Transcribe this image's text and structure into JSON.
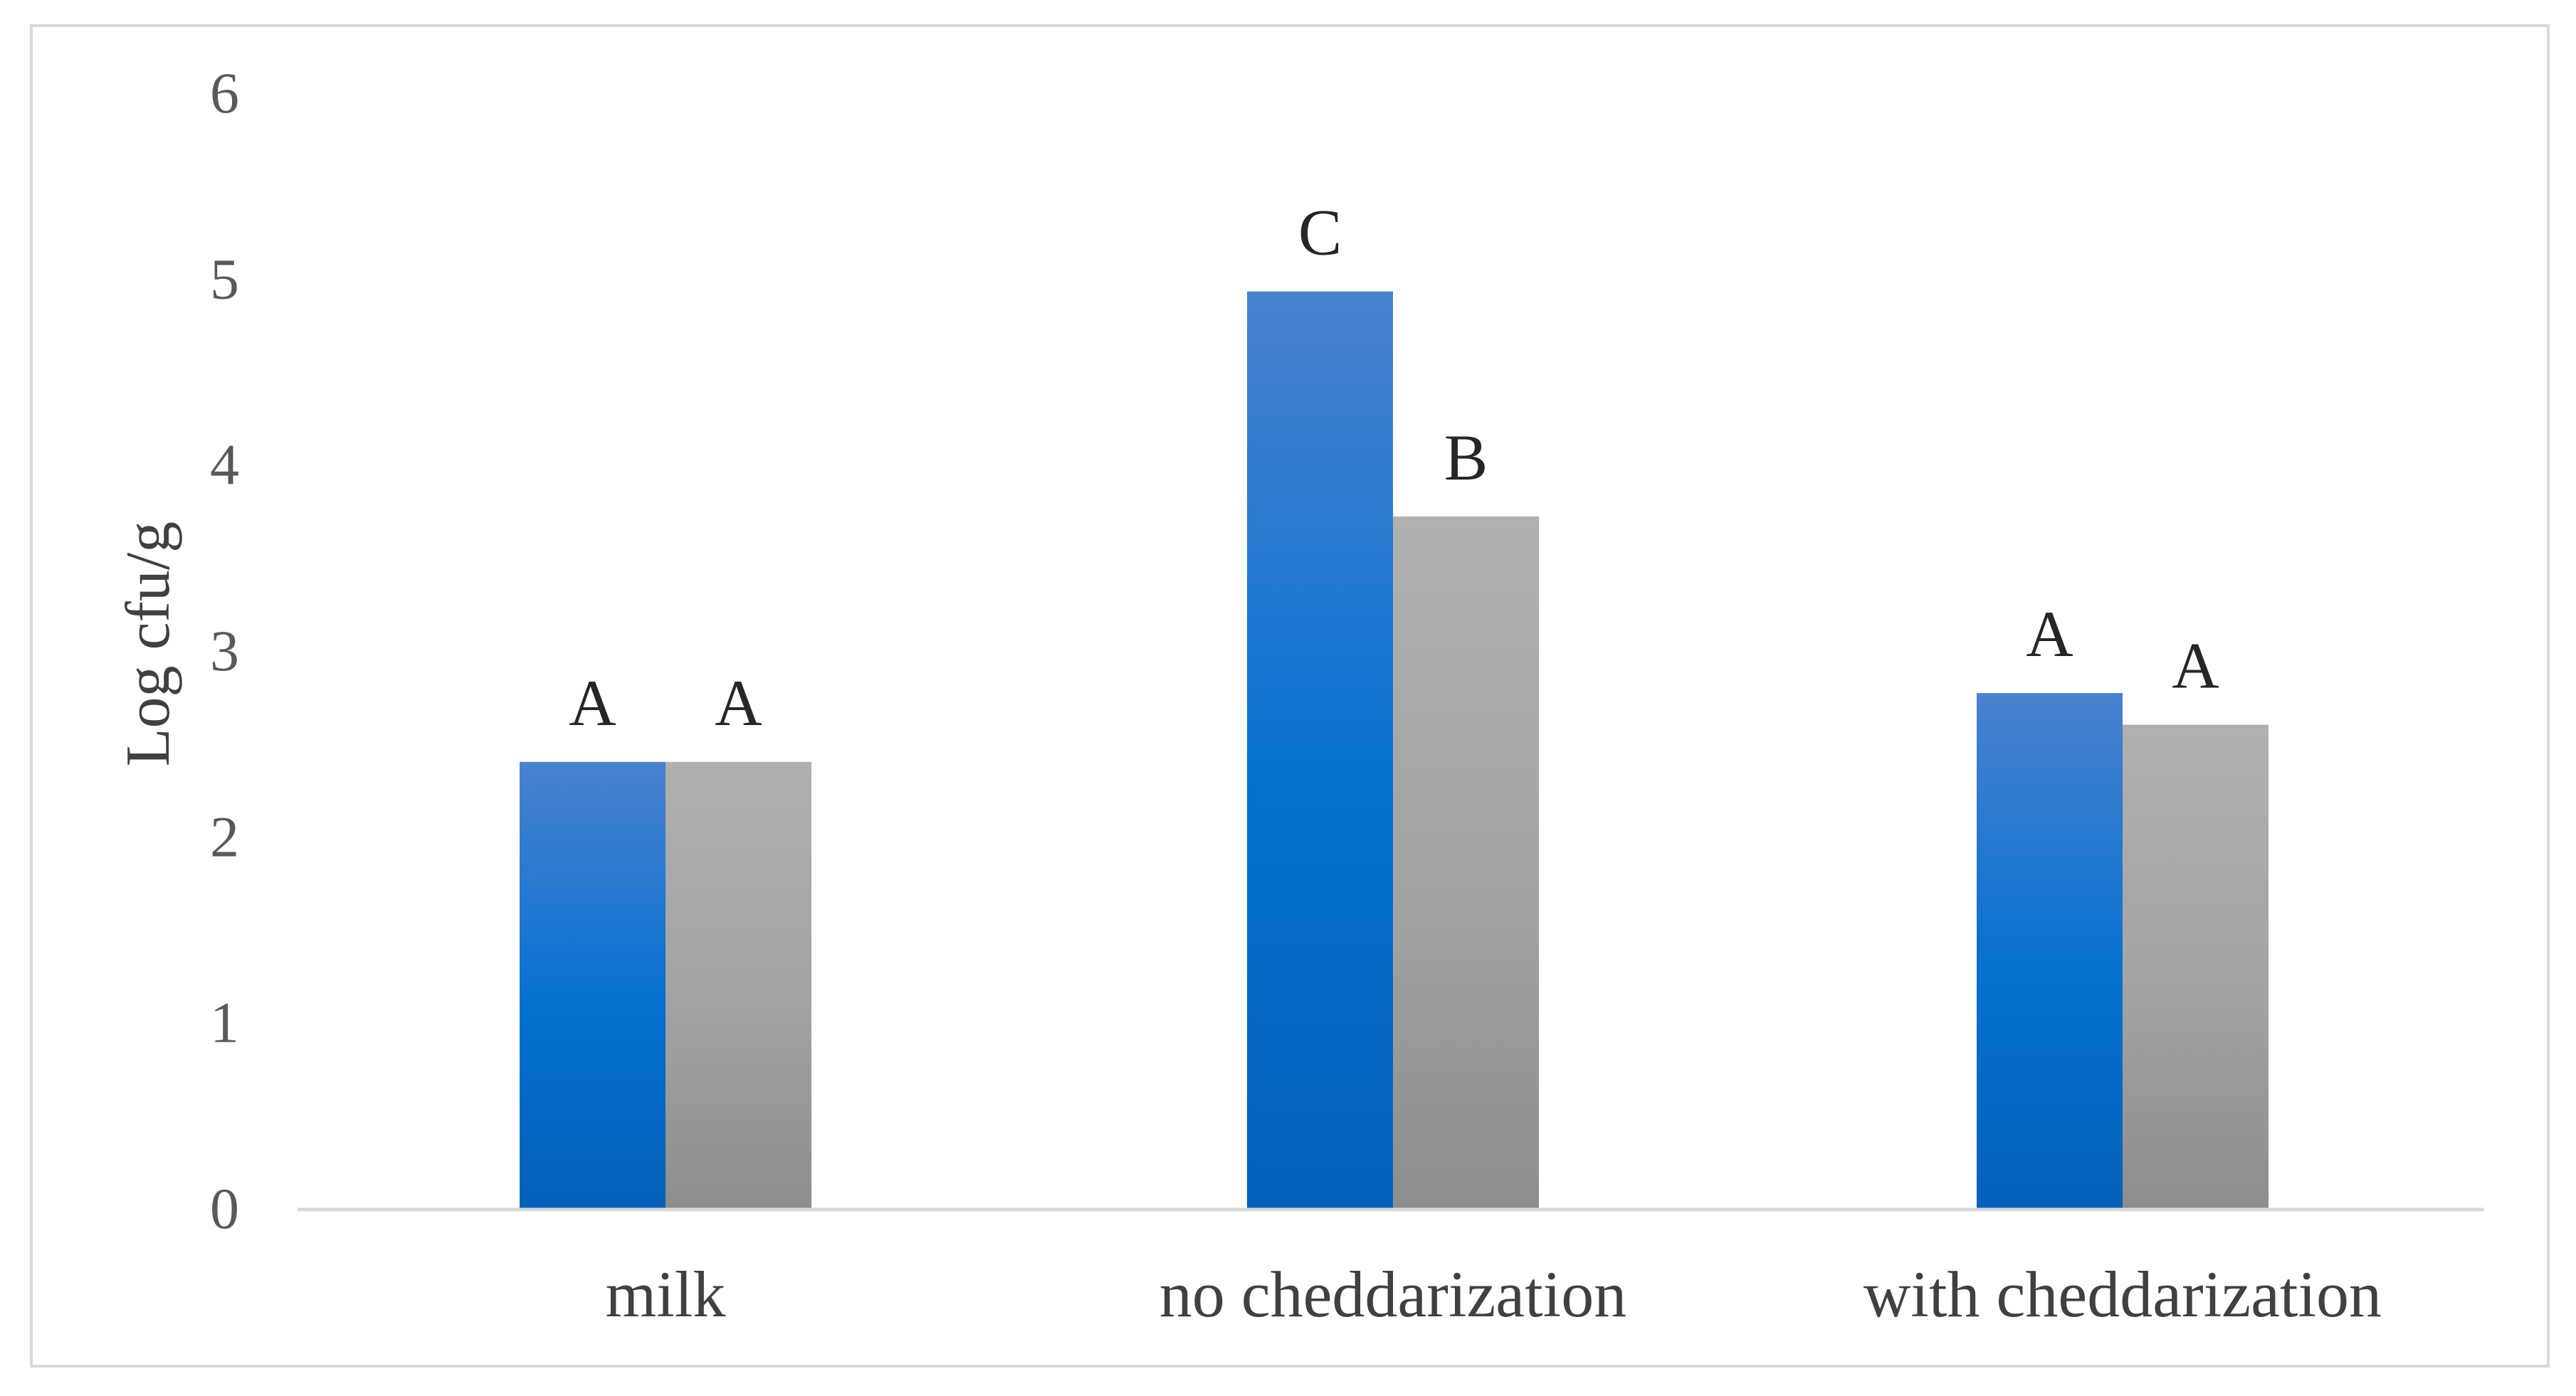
{
  "chart_data": {
    "type": "bar",
    "title": "",
    "xlabel": "",
    "ylabel": "Log cfu/g",
    "ylim": [
      0,
      6
    ],
    "yticks": [
      0,
      1,
      2,
      3,
      4,
      5,
      6
    ],
    "grid": false,
    "legend": "none",
    "categories": [
      "milk",
      "no cheddarization",
      "with cheddarization"
    ],
    "series": [
      {
        "color_top": "#4a82cf",
        "color_mid": "#0470d0",
        "color_bottom": "#0561b9",
        "values": [
          2.4,
          4.93,
          2.77
        ],
        "labels": [
          "A",
          "C",
          "A"
        ]
      },
      {
        "color_top": "#b0b0b0",
        "color_mid": "#a3a3a3",
        "color_bottom": "#8d8d8d",
        "values": [
          2.4,
          3.72,
          2.6
        ],
        "labels": [
          "A",
          "B",
          "A"
        ]
      }
    ],
    "axis_color": "#d9d9d9"
  }
}
